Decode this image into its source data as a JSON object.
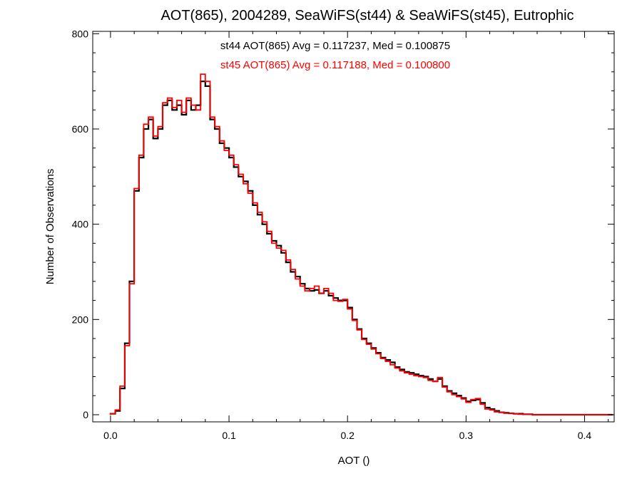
{
  "chart_data": {
    "type": "line",
    "title": "AOT(865), 2004289, SeaWiFS(st44) & SeaWiFS(st45), Eutrophic",
    "xlabel": "AOT ()",
    "ylabel": "Number of Observations",
    "xlim": [
      -0.015,
      0.425
    ],
    "ylim": [
      -15,
      805
    ],
    "xticks": [
      {
        "value": 0.0,
        "label": "0.0"
      },
      {
        "value": 0.1,
        "label": "0.1"
      },
      {
        "value": 0.2,
        "label": "0.2"
      },
      {
        "value": 0.3,
        "label": "0.3"
      },
      {
        "value": 0.4,
        "label": "0.4"
      }
    ],
    "yticks": [
      {
        "value": 0,
        "label": "0"
      },
      {
        "value": 200,
        "label": "200"
      },
      {
        "value": 400,
        "label": "400"
      },
      {
        "value": 600,
        "label": "600"
      },
      {
        "value": 800,
        "label": "800"
      }
    ],
    "grid": false,
    "step": true,
    "annotations": [
      {
        "text": "st44 AOT(865) Avg = 0.117237, Med = 0.100875",
        "color": "#000000"
      },
      {
        "text": "st45 AOT(865) Avg = 0.117188, Med = 0.100800",
        "color": "#ff0000"
      }
    ],
    "series": [
      {
        "color": "#000000",
        "x": [
          0.0,
          0.004,
          0.008,
          0.012,
          0.016,
          0.02,
          0.024,
          0.028,
          0.032,
          0.036,
          0.04,
          0.044,
          0.048,
          0.052,
          0.056,
          0.06,
          0.064,
          0.068,
          0.072,
          0.076,
          0.08,
          0.084,
          0.088,
          0.092,
          0.096,
          0.1,
          0.104,
          0.108,
          0.112,
          0.116,
          0.12,
          0.124,
          0.128,
          0.132,
          0.136,
          0.14,
          0.144,
          0.148,
          0.152,
          0.156,
          0.16,
          0.164,
          0.168,
          0.172,
          0.176,
          0.18,
          0.184,
          0.188,
          0.192,
          0.196,
          0.2,
          0.204,
          0.208,
          0.212,
          0.216,
          0.22,
          0.224,
          0.228,
          0.232,
          0.236,
          0.24,
          0.244,
          0.248,
          0.252,
          0.256,
          0.26,
          0.264,
          0.268,
          0.272,
          0.276,
          0.28,
          0.284,
          0.288,
          0.292,
          0.296,
          0.3,
          0.304,
          0.308,
          0.312,
          0.316,
          0.32,
          0.324,
          0.328,
          0.332,
          0.336,
          0.34,
          0.344,
          0.348,
          0.352,
          0.356,
          0.36,
          0.364,
          0.368,
          0.372,
          0.376,
          0.38,
          0.384,
          0.388,
          0.392,
          0.396,
          0.4,
          0.404,
          0.408,
          0.412,
          0.416,
          0.42
        ],
        "y": [
          2,
          8,
          55,
          150,
          280,
          470,
          540,
          600,
          620,
          580,
          600,
          650,
          660,
          640,
          650,
          630,
          660,
          640,
          650,
          700,
          690,
          620,
          600,
          570,
          560,
          540,
          520,
          500,
          490,
          470,
          440,
          420,
          400,
          380,
          365,
          355,
          340,
          320,
          300,
          290,
          275,
          265,
          260,
          262,
          255,
          260,
          250,
          245,
          240,
          240,
          225,
          200,
          180,
          160,
          150,
          140,
          130,
          120,
          115,
          110,
          100,
          95,
          90,
          88,
          85,
          82,
          80,
          75,
          70,
          75,
          60,
          50,
          45,
          40,
          35,
          28,
          30,
          32,
          25,
          15,
          12,
          8,
          5,
          4,
          3,
          2,
          2,
          1,
          1,
          0,
          0,
          0,
          0,
          0,
          0,
          0,
          0,
          0,
          0,
          0,
          0,
          0,
          0,
          0,
          0,
          0
        ]
      },
      {
        "color": "#ff0000",
        "x": [
          0.0,
          0.004,
          0.008,
          0.012,
          0.016,
          0.02,
          0.024,
          0.028,
          0.032,
          0.036,
          0.04,
          0.044,
          0.048,
          0.052,
          0.056,
          0.06,
          0.064,
          0.068,
          0.072,
          0.076,
          0.08,
          0.084,
          0.088,
          0.092,
          0.096,
          0.1,
          0.104,
          0.108,
          0.112,
          0.116,
          0.12,
          0.124,
          0.128,
          0.132,
          0.136,
          0.14,
          0.144,
          0.148,
          0.152,
          0.156,
          0.16,
          0.164,
          0.168,
          0.172,
          0.176,
          0.18,
          0.184,
          0.188,
          0.192,
          0.196,
          0.2,
          0.204,
          0.208,
          0.212,
          0.216,
          0.22,
          0.224,
          0.228,
          0.232,
          0.236,
          0.24,
          0.244,
          0.248,
          0.252,
          0.256,
          0.26,
          0.264,
          0.268,
          0.272,
          0.276,
          0.28,
          0.284,
          0.288,
          0.292,
          0.296,
          0.3,
          0.304,
          0.308,
          0.312,
          0.316,
          0.32,
          0.324,
          0.328,
          0.332,
          0.336,
          0.34,
          0.344,
          0.348,
          0.352,
          0.356,
          0.36,
          0.364,
          0.368,
          0.372,
          0.376,
          0.38,
          0.384,
          0.388,
          0.392,
          0.396,
          0.4,
          0.404,
          0.408,
          0.412,
          0.416,
          0.42
        ],
        "y": [
          2,
          10,
          60,
          145,
          275,
          475,
          545,
          610,
          625,
          585,
          605,
          655,
          665,
          645,
          660,
          635,
          665,
          650,
          640,
          715,
          700,
          625,
          605,
          575,
          555,
          545,
          525,
          505,
          485,
          465,
          445,
          425,
          405,
          385,
          360,
          350,
          345,
          325,
          305,
          285,
          270,
          260,
          265,
          270,
          255,
          265,
          255,
          240,
          238,
          242,
          222,
          198,
          178,
          158,
          148,
          138,
          128,
          118,
          112,
          105,
          98,
          92,
          88,
          85,
          82,
          80,
          78,
          72,
          70,
          78,
          58,
          48,
          42,
          38,
          33,
          26,
          32,
          34,
          22,
          12,
          10,
          6,
          5,
          3,
          3,
          2,
          1,
          1,
          1,
          0,
          0,
          0,
          0,
          0,
          0,
          0,
          0,
          0,
          0,
          0,
          0,
          0,
          0,
          0,
          0,
          0
        ]
      }
    ]
  }
}
